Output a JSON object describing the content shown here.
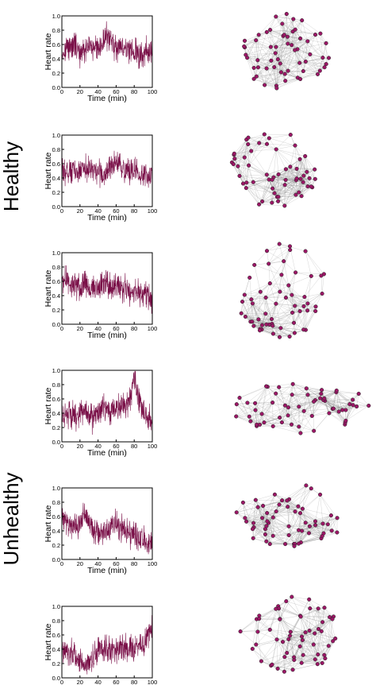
{
  "group_labels": {
    "healthy": "Healthy",
    "unhealthy": "Unhealthy"
  },
  "colors": {
    "line": "#7a1048",
    "node": "#9b1766",
    "edge": "#8a8a8a"
  },
  "axis": {
    "xlabel": "Time (min)",
    "ylabel": "Heart rate",
    "xticks": [
      "0",
      "20",
      "40",
      "60",
      "80",
      "100"
    ],
    "yticks": [
      "0.0",
      "0.2",
      "0.4",
      "0.6",
      "0.8",
      "1.0"
    ]
  },
  "chart_data": [
    {
      "type": "line",
      "group": "Healthy",
      "xlabel": "Time (min)",
      "ylabel": "Heart rate",
      "xlim": [
        0,
        100
      ],
      "ylim": [
        0,
        1
      ],
      "x": [
        0,
        5,
        10,
        15,
        20,
        25,
        30,
        35,
        40,
        45,
        50,
        55,
        60,
        65,
        70,
        75,
        80,
        85,
        90,
        95,
        100
      ],
      "y": [
        0.5,
        0.55,
        0.62,
        0.55,
        0.48,
        0.55,
        0.6,
        0.52,
        0.5,
        0.62,
        0.72,
        0.62,
        0.55,
        0.58,
        0.52,
        0.55,
        0.5,
        0.45,
        0.5,
        0.52,
        0.55
      ]
    },
    {
      "type": "line",
      "group": "Healthy",
      "xlabel": "Time (min)",
      "ylabel": "Heart rate",
      "xlim": [
        0,
        100
      ],
      "ylim": [
        0,
        1
      ],
      "x": [
        0,
        5,
        10,
        15,
        20,
        25,
        30,
        35,
        40,
        45,
        50,
        55,
        60,
        65,
        70,
        75,
        80,
        85,
        90,
        95,
        100
      ],
      "y": [
        0.45,
        0.5,
        0.52,
        0.48,
        0.5,
        0.55,
        0.52,
        0.48,
        0.5,
        0.45,
        0.5,
        0.55,
        0.6,
        0.52,
        0.5,
        0.48,
        0.5,
        0.45,
        0.48,
        0.45,
        0.42
      ]
    },
    {
      "type": "line",
      "group": "Healthy",
      "xlabel": "Time (min)",
      "ylabel": "Heart rate",
      "xlim": [
        0,
        100
      ],
      "ylim": [
        0,
        1
      ],
      "x": [
        0,
        5,
        10,
        15,
        20,
        25,
        30,
        35,
        40,
        45,
        50,
        55,
        60,
        65,
        70,
        75,
        80,
        85,
        90,
        95,
        100
      ],
      "y": [
        0.6,
        0.62,
        0.58,
        0.55,
        0.5,
        0.55,
        0.52,
        0.48,
        0.5,
        0.52,
        0.55,
        0.5,
        0.52,
        0.48,
        0.5,
        0.45,
        0.42,
        0.45,
        0.4,
        0.38,
        0.35
      ]
    },
    {
      "type": "line",
      "group": "Unhealthy",
      "xlabel": "Time (min)",
      "ylabel": "Heart rate",
      "xlim": [
        0,
        100
      ],
      "ylim": [
        0,
        1
      ],
      "x": [
        0,
        5,
        10,
        15,
        20,
        25,
        30,
        35,
        40,
        45,
        50,
        55,
        60,
        65,
        70,
        75,
        80,
        85,
        90,
        95,
        100
      ],
      "y": [
        0.4,
        0.35,
        0.38,
        0.35,
        0.38,
        0.42,
        0.35,
        0.3,
        0.42,
        0.48,
        0.45,
        0.42,
        0.45,
        0.48,
        0.5,
        0.55,
        0.88,
        0.65,
        0.45,
        0.35,
        0.3
      ]
    },
    {
      "type": "line",
      "group": "Unhealthy",
      "xlabel": "Time (min)",
      "ylabel": "Heart rate",
      "xlim": [
        0,
        100
      ],
      "ylim": [
        0,
        1
      ],
      "x": [
        0,
        5,
        10,
        15,
        20,
        25,
        30,
        35,
        40,
        45,
        50,
        55,
        60,
        65,
        70,
        75,
        80,
        85,
        90,
        95,
        100
      ],
      "y": [
        0.55,
        0.52,
        0.5,
        0.48,
        0.5,
        0.62,
        0.55,
        0.4,
        0.42,
        0.4,
        0.42,
        0.45,
        0.5,
        0.45,
        0.4,
        0.35,
        0.32,
        0.3,
        0.28,
        0.25,
        0.22
      ]
    },
    {
      "type": "line",
      "group": "Unhealthy",
      "xlabel": "Time (min)",
      "ylabel": "Heart rate",
      "xlim": [
        0,
        100
      ],
      "ylim": [
        0,
        1
      ],
      "x": [
        0,
        5,
        10,
        15,
        20,
        25,
        30,
        35,
        40,
        45,
        50,
        55,
        60,
        65,
        70,
        75,
        80,
        85,
        90,
        95,
        100
      ],
      "y": [
        0.4,
        0.38,
        0.35,
        0.3,
        0.25,
        0.18,
        0.2,
        0.3,
        0.4,
        0.42,
        0.4,
        0.38,
        0.38,
        0.42,
        0.45,
        0.4,
        0.38,
        0.42,
        0.48,
        0.55,
        0.78
      ]
    }
  ]
}
